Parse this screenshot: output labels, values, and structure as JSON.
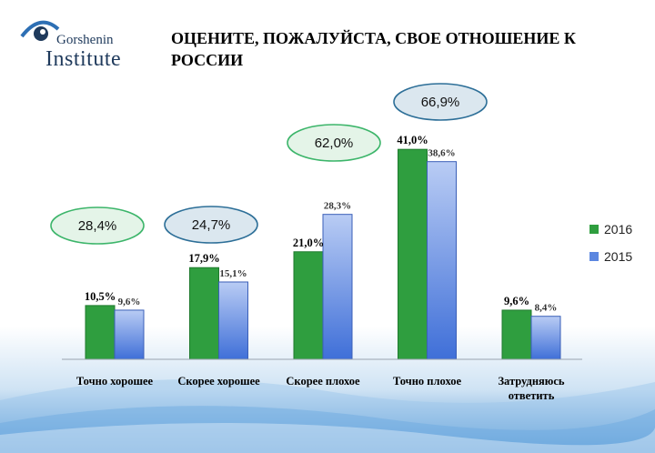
{
  "header": {
    "title": "ОЦЕНИТЕ, ПОЖАЛУЙСТА, СВОЕ ОТНОШЕНИЕ К РОССИИ",
    "logo": {
      "name": "Gorshenin",
      "sub": "Institute",
      "icon": "eye-logo-icon"
    }
  },
  "colors": {
    "series2016": "#2f9e3f",
    "series2015": "#5b86e0",
    "bubble_green_fill": "#e4f4e8",
    "bubble_green_stroke": "#3cb56a",
    "bubble_blue_fill": "#dbe7ef",
    "bubble_blue_stroke": "#2d6f98"
  },
  "chart_data": {
    "type": "bar",
    "categories": [
      "Точно хорошее",
      "Скорее хорошее",
      "Скорее плохое",
      "Точно плохое",
      "Затрудняюсь ответить"
    ],
    "category_lines": [
      [
        "Точно хорошее"
      ],
      [
        "Скорее хорошее"
      ],
      [
        "Скорее плохое"
      ],
      [
        "Точно плохое"
      ],
      [
        "Затрудняюсь",
        "ответить"
      ]
    ],
    "series": [
      {
        "name": "2016",
        "values": [
          10.5,
          17.9,
          21.0,
          41.0,
          9.6
        ],
        "labels": [
          "10,5%",
          "17,9%",
          "21,0%",
          "41,0%",
          "9,6%"
        ]
      },
      {
        "name": "2015",
        "values": [
          9.6,
          15.1,
          28.3,
          38.6,
          8.4
        ],
        "labels": [
          "9,6%",
          "15,1%",
          "28,3%",
          "38,6%",
          "8,4%"
        ]
      }
    ],
    "ylim": [
      0,
      45
    ],
    "legend": "right",
    "grid": false,
    "annotations": [
      {
        "text": "28,4%",
        "style": "green",
        "category": 0
      },
      {
        "text": "24,7%",
        "style": "blue",
        "category": 1
      },
      {
        "text": "62,0%",
        "style": "green",
        "category": 2
      },
      {
        "text": "66,9%",
        "style": "blue",
        "category": 3
      }
    ]
  }
}
